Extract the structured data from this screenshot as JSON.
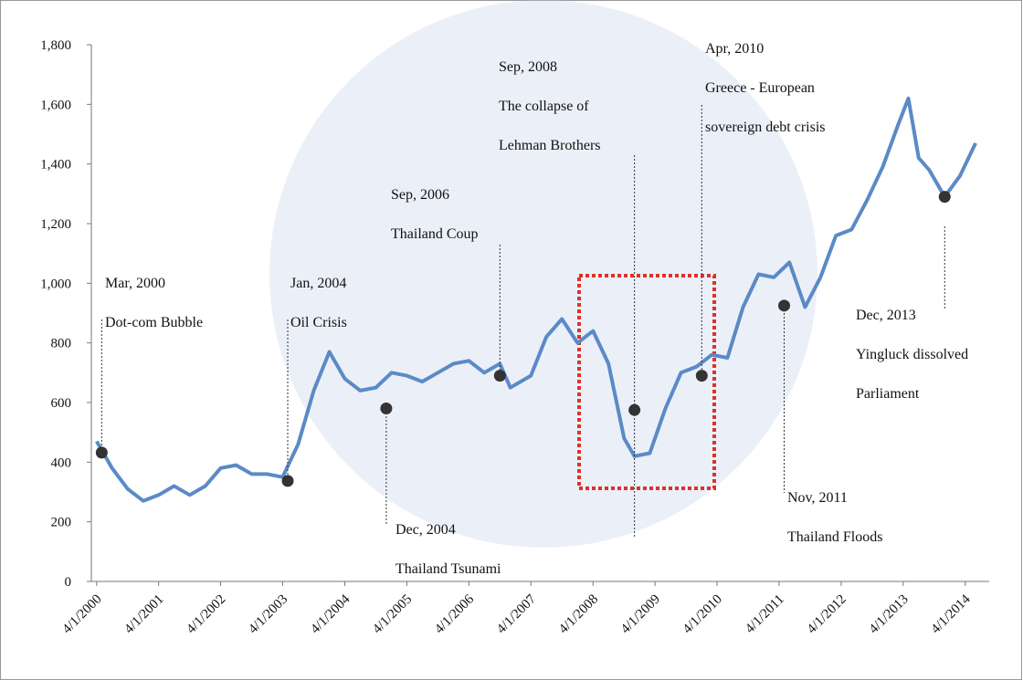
{
  "chart_data": {
    "type": "line",
    "x": [
      "2000-04-01",
      "2000-07-01",
      "2000-10-01",
      "2001-01-01",
      "2001-04-01",
      "2001-07-01",
      "2001-10-01",
      "2002-01-01",
      "2002-04-01",
      "2002-07-01",
      "2002-10-01",
      "2003-01-01",
      "2003-04-01",
      "2003-07-01",
      "2003-10-01",
      "2004-01-01",
      "2004-04-01",
      "2004-07-01",
      "2004-10-01",
      "2005-01-01",
      "2005-04-01",
      "2005-07-01",
      "2005-10-01",
      "2006-01-01",
      "2006-04-01",
      "2006-07-01",
      "2006-10-01",
      "2006-12-01",
      "2007-04-01",
      "2007-07-01",
      "2007-10-01",
      "2008-01-01",
      "2008-04-01",
      "2008-07-01",
      "2008-10-01",
      "2008-12-01",
      "2009-03-01",
      "2009-06-01",
      "2009-09-01",
      "2009-12-01",
      "2010-03-01",
      "2010-06-01",
      "2010-09-01",
      "2010-12-01",
      "2011-03-01",
      "2011-06-01",
      "2011-09-01",
      "2011-12-01",
      "2012-03-01",
      "2012-06-01",
      "2012-09-01",
      "2012-12-01",
      "2013-03-01",
      "2013-05-01",
      "2013-07-01",
      "2013-09-01",
      "2013-12-01",
      "2014-03-01",
      "2014-06-01"
    ],
    "series": [
      {
        "color": "#5b8ac6",
        "values": [
          470,
          380,
          310,
          270,
          290,
          320,
          290,
          320,
          380,
          390,
          360,
          360,
          350,
          460,
          640,
          770,
          680,
          640,
          650,
          700,
          690,
          670,
          700,
          730,
          740,
          700,
          730,
          650,
          690,
          820,
          880,
          800,
          840,
          730,
          480,
          420,
          430,
          580,
          700,
          720,
          760,
          750,
          920,
          1030,
          1020,
          1070,
          920,
          1020,
          1160,
          1180,
          1280,
          1390,
          1530,
          1620,
          1420,
          1380,
          1290,
          1360,
          1470
        ]
      }
    ],
    "events": [
      {
        "date": "Mar, 2000",
        "label": [
          "Dot-com Bubble"
        ],
        "x": "2000-05-01",
        "value": 432
      },
      {
        "date": "Jan, 2004",
        "label": [
          "Oil Crisis"
        ],
        "x": "2003-05-01",
        "value": 337
      },
      {
        "date": "Dec, 2004",
        "label": [
          "Thailand Tsunami"
        ],
        "x": "2004-12-01",
        "value": 580
      },
      {
        "date": "Sep, 2006",
        "label": [
          "Thailand Coup"
        ],
        "x": "2006-10-01",
        "value": 690
      },
      {
        "date": "Sep, 2008",
        "label": [
          "The collapse of",
          "Lehman Brothers"
        ],
        "x": "2008-12-01",
        "value": 575
      },
      {
        "date": "Apr, 2010",
        "label": [
          "Greece - European",
          "sovereign debt crisis"
        ],
        "x": "2010-01-01",
        "value": 690
      },
      {
        "date": "Nov, 2011",
        "label": [
          "Thailand Floods"
        ],
        "x": "2011-05-01",
        "value": 925
      },
      {
        "date": "Dec, 2013",
        "label": [
          "Yingluck dissolved",
          "Parliament"
        ],
        "x": "2013-12-01",
        "value": 1290
      }
    ],
    "event_color": "#333333",
    "xlim": [
      "2000-03-01",
      "2014-08-20"
    ],
    "xticks": [
      {
        "value": "2000-04-01",
        "label": "4/1/2000"
      },
      {
        "value": "2001-04-01",
        "label": "4/1/2001"
      },
      {
        "value": "2002-04-01",
        "label": "4/1/2002"
      },
      {
        "value": "2003-04-01",
        "label": "4/1/2003"
      },
      {
        "value": "2004-04-01",
        "label": "4/1/2004"
      },
      {
        "value": "2005-04-01",
        "label": "4/1/2005"
      },
      {
        "value": "2006-04-01",
        "label": "4/1/2006"
      },
      {
        "value": "2007-04-01",
        "label": "4/1/2007"
      },
      {
        "value": "2008-04-01",
        "label": "4/1/2008"
      },
      {
        "value": "2009-04-01",
        "label": "4/1/2009"
      },
      {
        "value": "2010-04-01",
        "label": "4/1/2010"
      },
      {
        "value": "2011-04-01",
        "label": "4/1/2011"
      },
      {
        "value": "2012-04-01",
        "label": "4/1/2012"
      },
      {
        "value": "2013-04-01",
        "label": "4/1/2013"
      },
      {
        "value": "2014-04-01",
        "label": "4/1/2014"
      }
    ],
    "ylim": [
      0,
      1800
    ],
    "yticks": [
      0,
      {
        "value": 200,
        "label": "200"
      },
      {
        "value": 400,
        "label": "400"
      },
      {
        "value": 600,
        "label": "600"
      },
      {
        "value": 800,
        "label": "800"
      },
      {
        "value": 1000,
        "label": "1,000"
      },
      {
        "value": 1200,
        "label": "1,200"
      },
      {
        "value": 1400,
        "label": "1,400"
      },
      {
        "value": 1600,
        "label": "1,600"
      },
      {
        "value": 1800,
        "label": "1,800"
      }
    ]
  }
}
